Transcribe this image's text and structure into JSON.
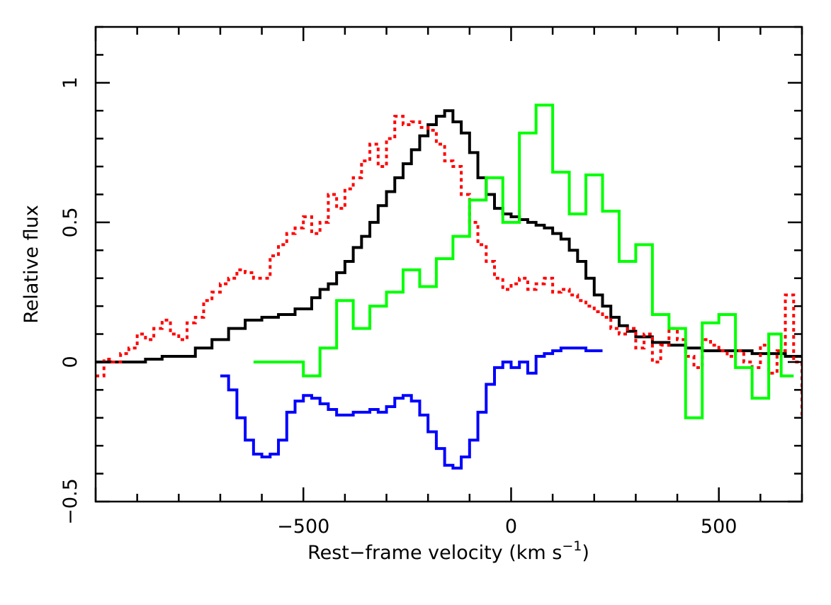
{
  "chart_data": {
    "type": "line",
    "title": "",
    "xlabel": "Rest−frame velocity (km s",
    "xlabel_sup": "−1",
    "xlabel_close": ")",
    "ylabel": "Relative flux",
    "xlim": [
      -1000,
      700
    ],
    "ylim": [
      -0.5,
      1.2
    ],
    "x_ticks": [
      {
        "value": -500,
        "label": "−500"
      },
      {
        "value": 0,
        "label": "0"
      },
      {
        "value": 500,
        "label": "500"
      }
    ],
    "y_ticks": [
      {
        "value": -0.5,
        "label": "−0.5"
      },
      {
        "value": 0,
        "label": "0"
      },
      {
        "value": 0.5,
        "label": "0.5"
      },
      {
        "value": 1,
        "label": "1"
      }
    ],
    "grid": false,
    "series": [
      {
        "color": "#000000",
        "style": "solid-step",
        "x": [
          -1000,
          -960,
          -920,
          -880,
          -840,
          -800,
          -760,
          -720,
          -680,
          -640,
          -600,
          -560,
          -520,
          -480,
          -460,
          -440,
          -420,
          -400,
          -380,
          -360,
          -340,
          -320,
          -300,
          -280,
          -260,
          -240,
          -220,
          -200,
          -180,
          -160,
          -140,
          -120,
          -100,
          -80,
          -60,
          -40,
          -20,
          0,
          20,
          40,
          60,
          80,
          100,
          120,
          140,
          160,
          180,
          200,
          220,
          240,
          260,
          280,
          300,
          340,
          380,
          420,
          460,
          500,
          540,
          580,
          620,
          660,
          700
        ],
        "y": [
          0,
          0,
          0,
          0.01,
          0.02,
          0.02,
          0.05,
          0.08,
          0.12,
          0.15,
          0.16,
          0.17,
          0.19,
          0.23,
          0.26,
          0.28,
          0.32,
          0.36,
          0.41,
          0.45,
          0.5,
          0.56,
          0.61,
          0.66,
          0.71,
          0.76,
          0.81,
          0.85,
          0.88,
          0.9,
          0.86,
          0.82,
          0.75,
          0.66,
          0.6,
          0.55,
          0.53,
          0.52,
          0.51,
          0.5,
          0.49,
          0.48,
          0.46,
          0.44,
          0.4,
          0.36,
          0.3,
          0.24,
          0.2,
          0.16,
          0.13,
          0.11,
          0.09,
          0.07,
          0.06,
          0.05,
          0.04,
          0.04,
          0.04,
          0.03,
          0.03,
          0.02,
          0.02
        ]
      },
      {
        "color": "#ff0000",
        "style": "dotted-step",
        "x": [
          -1000,
          -980,
          -960,
          -940,
          -920,
          -900,
          -880,
          -860,
          -840,
          -820,
          -800,
          -780,
          -760,
          -740,
          -720,
          -700,
          -680,
          -660,
          -640,
          -620,
          -600,
          -580,
          -560,
          -540,
          -520,
          -500,
          -480,
          -460,
          -440,
          -420,
          -400,
          -380,
          -360,
          -340,
          -320,
          -300,
          -280,
          -260,
          -240,
          -220,
          -200,
          -180,
          -160,
          -140,
          -120,
          -100,
          -80,
          -60,
          -40,
          -20,
          0,
          20,
          40,
          60,
          80,
          100,
          120,
          140,
          160,
          180,
          200,
          220,
          240,
          260,
          280,
          300,
          320,
          340,
          360,
          380,
          400,
          420,
          440,
          460,
          480,
          500,
          520,
          540,
          560,
          580,
          600,
          620,
          640,
          660,
          680,
          700
        ],
        "y": [
          -0.05,
          0.01,
          0.0,
          0.03,
          0.05,
          0.1,
          0.08,
          0.12,
          0.15,
          0.1,
          0.08,
          0.14,
          0.16,
          0.22,
          0.25,
          0.28,
          0.3,
          0.33,
          0.32,
          0.3,
          0.3,
          0.38,
          0.42,
          0.46,
          0.48,
          0.52,
          0.46,
          0.5,
          0.6,
          0.55,
          0.62,
          0.66,
          0.72,
          0.78,
          0.7,
          0.8,
          0.88,
          0.85,
          0.86,
          0.84,
          0.83,
          0.78,
          0.72,
          0.7,
          0.6,
          0.5,
          0.42,
          0.36,
          0.3,
          0.26,
          0.28,
          0.3,
          0.26,
          0.28,
          0.3,
          0.25,
          0.26,
          0.24,
          0.22,
          0.2,
          0.18,
          0.16,
          0.12,
          0.1,
          0.12,
          0.05,
          0.1,
          0.0,
          0.06,
          0.12,
          0.08,
          0.02,
          -0.02,
          0.08,
          0.06,
          0.04,
          0.02,
          0.04,
          0.0,
          -0.02,
          0.06,
          -0.04,
          0.04,
          0.24,
          0.0,
          -0.2
        ]
      },
      {
        "color": "#00ff00",
        "style": "solid-step",
        "x": [
          -620,
          -580,
          -540,
          -500,
          -460,
          -420,
          -380,
          -340,
          -300,
          -260,
          -220,
          -180,
          -140,
          -100,
          -60,
          -20,
          20,
          60,
          100,
          140,
          180,
          220,
          260,
          300,
          340,
          380,
          420,
          460,
          500,
          540,
          580,
          620,
          650
        ],
        "y": [
          0,
          0,
          0,
          -0.05,
          0.05,
          0.22,
          0.12,
          0.2,
          0.25,
          0.33,
          0.27,
          0.37,
          0.45,
          0.58,
          0.66,
          0.5,
          0.82,
          0.92,
          0.68,
          0.53,
          0.67,
          0.54,
          0.36,
          0.42,
          0.17,
          0.12,
          -0.2,
          0.14,
          0.17,
          -0.02,
          -0.13,
          0.1,
          -0.05
        ]
      },
      {
        "color": "#0000ff",
        "style": "solid-step",
        "x": [
          -700,
          -680,
          -660,
          -640,
          -620,
          -600,
          -580,
          -560,
          -540,
          -520,
          -500,
          -480,
          -460,
          -440,
          -420,
          -400,
          -380,
          -360,
          -340,
          -320,
          -300,
          -280,
          -260,
          -240,
          -220,
          -200,
          -180,
          -160,
          -140,
          -120,
          -100,
          -80,
          -60,
          -40,
          -20,
          0,
          20,
          40,
          60,
          80,
          100,
          120,
          140,
          160,
          180,
          200,
          210
        ],
        "y": [
          -0.05,
          -0.1,
          -0.2,
          -0.28,
          -0.33,
          -0.34,
          -0.33,
          -0.28,
          -0.18,
          -0.14,
          -0.12,
          -0.13,
          -0.15,
          -0.17,
          -0.19,
          -0.19,
          -0.18,
          -0.18,
          -0.17,
          -0.18,
          -0.16,
          -0.13,
          -0.12,
          -0.14,
          -0.19,
          -0.25,
          -0.31,
          -0.37,
          -0.38,
          -0.34,
          -0.28,
          -0.18,
          -0.08,
          -0.02,
          0,
          -0.02,
          0,
          -0.04,
          0.02,
          0.03,
          0.04,
          0.05,
          0.05,
          0.05,
          0.04,
          0.04,
          0.04
        ]
      }
    ]
  }
}
